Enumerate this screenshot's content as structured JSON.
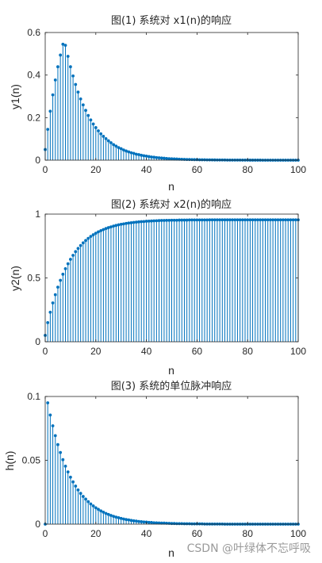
{
  "watermark": "CSDN @叶绿体不忘呼吸",
  "colors": {
    "stem": "#0072BD",
    "axis": "#262626"
  },
  "chart_data": [
    {
      "type": "stem",
      "title": "图(1) 系统对 x1(n)的响应",
      "xlabel": "n",
      "ylabel": "y1(n)",
      "xlim": [
        0,
        100
      ],
      "ylim": [
        0,
        0.6
      ],
      "xticks": [
        "0",
        "20",
        "40",
        "60",
        "80",
        "100"
      ],
      "yticks": [
        "0",
        "0.2",
        "0.4",
        "0.6"
      ],
      "x": [
        0,
        1,
        2,
        3,
        4,
        5,
        6,
        7,
        8,
        9,
        10,
        11,
        12,
        13,
        14,
        15,
        16,
        17,
        18,
        19,
        20,
        21,
        22,
        23,
        24,
        25,
        26,
        27,
        28,
        29,
        30,
        31,
        32,
        33,
        34,
        35,
        36,
        37,
        38,
        39,
        40,
        41,
        42,
        43,
        44,
        45,
        46,
        47,
        48,
        49,
        50,
        51,
        52,
        53,
        54,
        55,
        56,
        57,
        58,
        59,
        60,
        61,
        62,
        63,
        64,
        65,
        66,
        67,
        68,
        69,
        70,
        71,
        72,
        73,
        74,
        75,
        76,
        77,
        78,
        79,
        80,
        81,
        82,
        83,
        84,
        85,
        86,
        87,
        88,
        89,
        90,
        91,
        92,
        93,
        94,
        95,
        96,
        97,
        98,
        99,
        100
      ],
      "y": [
        0.05,
        0.145,
        0.23,
        0.307,
        0.377,
        0.439,
        0.494,
        0.545,
        0.54,
        0.488,
        0.439,
        0.396,
        0.356,
        0.32,
        0.288,
        0.26,
        0.234,
        0.21,
        0.189,
        0.17,
        0.153,
        0.138,
        0.124,
        0.112,
        0.101,
        0.091,
        0.082,
        0.073,
        0.066,
        0.059,
        0.054,
        0.048,
        0.043,
        0.039,
        0.035,
        0.032,
        0.028,
        0.026,
        0.023,
        0.021,
        0.019,
        0.017,
        0.015,
        0.014,
        0.012,
        0.011,
        0.01,
        0.009,
        0.008,
        0.007,
        0.0065,
        0.0058,
        0.0053,
        0.0047,
        0.0043,
        0.0038,
        0.0034,
        0.0031,
        0.0028,
        0.0025,
        0.0023,
        0.002,
        0.0018,
        0.0017,
        0.0015,
        0.0013,
        0.0012,
        0.0011,
        0.001,
        0.0009,
        0.0008,
        0.0007,
        0.0006,
        0.0006,
        0.0005,
        0.0005,
        0.0004,
        0.0004,
        0.0003,
        0.0003,
        0.0003,
        0.0002,
        0.0002,
        0.0002,
        0.0002,
        0.0002,
        0.0001,
        0.0001,
        0.0001,
        0.0001,
        0.0001,
        0.0001,
        0.0001,
        0.0001,
        0.0001,
        0,
        0,
        0,
        0,
        0,
        0
      ]
    },
    {
      "type": "stem",
      "title": "图(2) 系统对 x2(n)的响应",
      "xlabel": "n",
      "ylabel": "y2(n)",
      "xlim": [
        0,
        100
      ],
      "ylim": [
        0,
        1
      ],
      "xticks": [
        "0",
        "20",
        "40",
        "60",
        "80",
        "100"
      ],
      "yticks": [
        "0",
        "0.5",
        "1"
      ],
      "x": [
        0,
        1,
        2,
        3,
        4,
        5,
        6,
        7,
        8,
        9,
        10,
        11,
        12,
        13,
        14,
        15,
        16,
        17,
        18,
        19,
        20,
        21,
        22,
        23,
        24,
        25,
        26,
        27,
        28,
        29,
        30,
        31,
        32,
        33,
        34,
        35,
        36,
        37,
        38,
        39,
        40,
        41,
        42,
        43,
        44,
        45,
        46,
        47,
        48,
        49,
        50,
        51,
        52,
        53,
        54,
        55,
        56,
        57,
        58,
        59,
        60,
        61,
        62,
        63,
        64,
        65,
        66,
        67,
        68,
        69,
        70,
        71,
        72,
        73,
        74,
        75,
        76,
        77,
        78,
        79,
        80,
        81,
        82,
        83,
        84,
        85,
        86,
        87,
        88,
        89,
        90,
        91,
        92,
        93,
        94,
        95,
        96,
        97,
        98,
        99,
        100
      ],
      "y": [
        0.05,
        0.15,
        0.231,
        0.304,
        0.369,
        0.428,
        0.481,
        0.529,
        0.572,
        0.611,
        0.646,
        0.677,
        0.706,
        0.731,
        0.754,
        0.775,
        0.793,
        0.81,
        0.825,
        0.838,
        0.85,
        0.861,
        0.87,
        0.879,
        0.887,
        0.894,
        0.9,
        0.906,
        0.911,
        0.916,
        0.92,
        0.923,
        0.927,
        0.93,
        0.932,
        0.935,
        0.937,
        0.939,
        0.941,
        0.942,
        0.944,
        0.945,
        0.946,
        0.947,
        0.948,
        0.949,
        0.95,
        0.95,
        0.951,
        0.951,
        0.952,
        0.952,
        0.952,
        0.953,
        0.953,
        0.953,
        0.953,
        0.954,
        0.954,
        0.954,
        0.954,
        0.954,
        0.954,
        0.954,
        0.954,
        0.955,
        0.955,
        0.955,
        0.955,
        0.955,
        0.955,
        0.955,
        0.955,
        0.955,
        0.955,
        0.955,
        0.955,
        0.955,
        0.955,
        0.955,
        0.955,
        0.955,
        0.955,
        0.955,
        0.955,
        0.955,
        0.955,
        0.955,
        0.955,
        0.955,
        0.955,
        0.955,
        0.955,
        0.955,
        0.955,
        0.955,
        0.955,
        0.955,
        0.955,
        0.955,
        0.955
      ]
    },
    {
      "type": "stem",
      "title": "图(3) 系统的单位脉冲响应",
      "xlabel": "n",
      "ylabel": "h(n)",
      "xlim": [
        0,
        100
      ],
      "ylim": [
        0,
        0.1
      ],
      "xticks": [
        "0",
        "20",
        "40",
        "60",
        "80",
        "100"
      ],
      "yticks": [
        "0",
        "0.05",
        "0.1"
      ],
      "x": [
        0,
        1,
        2,
        3,
        4,
        5,
        6,
        7,
        8,
        9,
        10,
        11,
        12,
        13,
        14,
        15,
        16,
        17,
        18,
        19,
        20,
        21,
        22,
        23,
        24,
        25,
        26,
        27,
        28,
        29,
        30,
        31,
        32,
        33,
        34,
        35,
        36,
        37,
        38,
        39,
        40,
        41,
        42,
        43,
        44,
        45,
        46,
        47,
        48,
        49,
        50,
        51,
        52,
        53,
        54,
        55,
        56,
        57,
        58,
        59,
        60,
        61,
        62,
        63,
        64,
        65,
        66,
        67,
        68,
        69,
        70,
        71,
        72,
        73,
        74,
        75,
        76,
        77,
        78,
        79,
        80,
        81,
        82,
        83,
        84,
        85,
        86,
        87,
        88,
        89,
        90,
        91,
        92,
        93,
        94,
        95,
        96,
        97,
        98,
        99,
        100
      ],
      "y": [
        0,
        0.095,
        0.0855,
        0.077,
        0.0693,
        0.0623,
        0.0561,
        0.0505,
        0.0454,
        0.0409,
        0.0368,
        0.0331,
        0.0298,
        0.0268,
        0.0241,
        0.0217,
        0.0196,
        0.0176,
        0.0158,
        0.0143,
        0.0128,
        0.0116,
        0.0104,
        0.0094,
        0.0084,
        0.0076,
        0.0068,
        0.0061,
        0.0055,
        0.005,
        0.0045,
        0.004,
        0.0036,
        0.0033,
        0.0029,
        0.0026,
        0.0024,
        0.0021,
        0.0019,
        0.0017,
        0.0016,
        0.0014,
        0.0013,
        0.0011,
        0.001,
        0.0009,
        0.0008,
        0.0008,
        0.0007,
        0.0006,
        0.0005,
        0.0005,
        0.0004,
        0.0004,
        0.0004,
        0.0003,
        0.0003,
        0.0003,
        0.0002,
        0.0002,
        0.0002,
        0.0002,
        0.0002,
        0.0001,
        0.0001,
        0.0001,
        0.0001,
        0.0001,
        0.0001,
        0.0001,
        0.0001,
        0,
        0,
        0,
        0,
        0,
        0,
        0,
        0,
        0,
        0,
        0,
        0,
        0,
        0,
        0,
        0,
        0,
        0,
        0,
        0,
        0,
        0,
        0,
        0,
        0,
        0,
        0,
        0,
        0,
        0
      ]
    }
  ]
}
